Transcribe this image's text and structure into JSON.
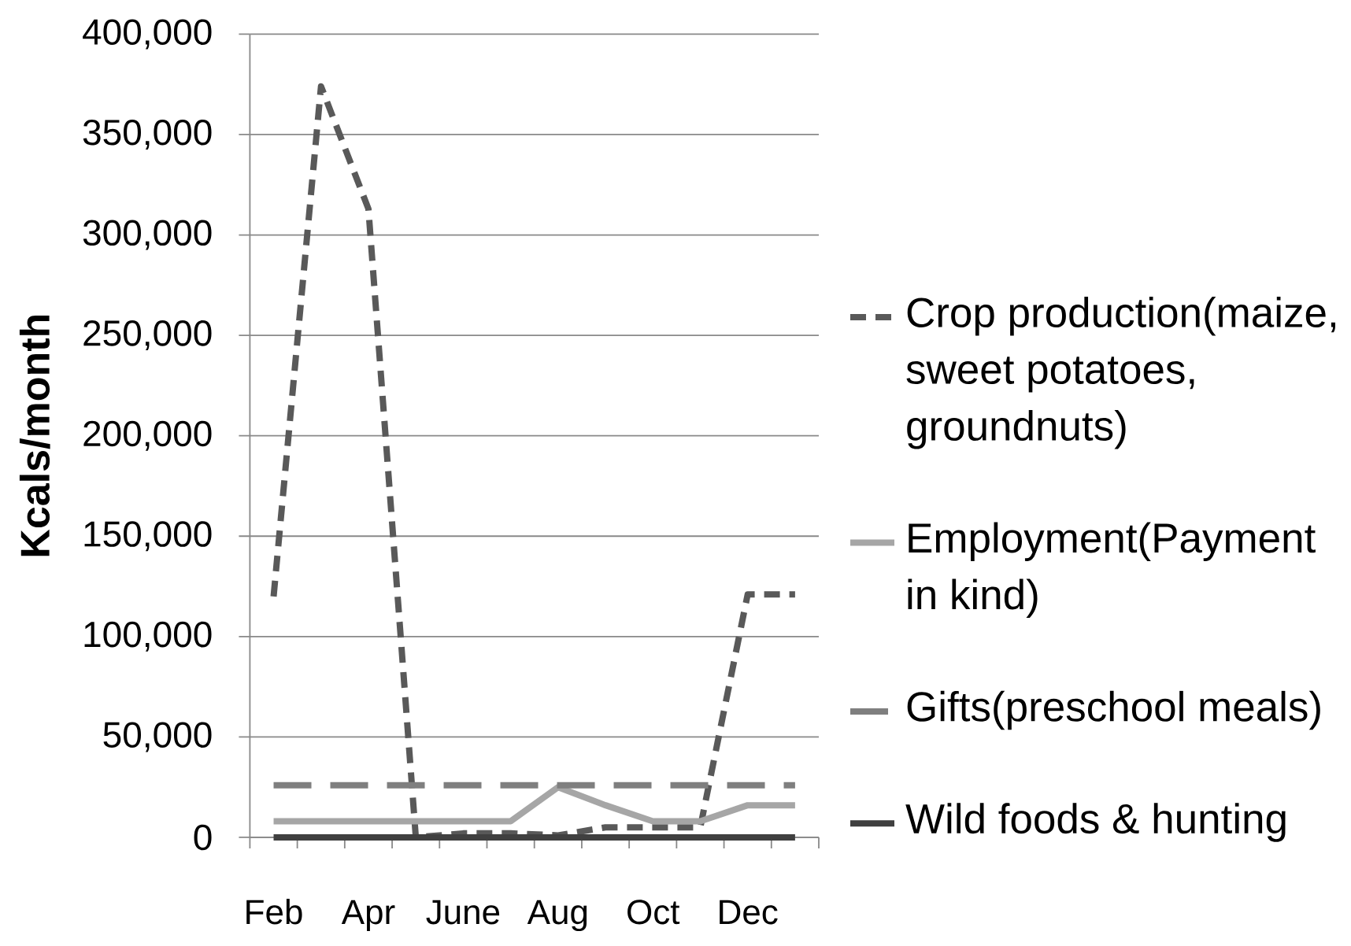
{
  "chart_data": {
    "type": "line",
    "categories": [
      "Feb",
      null,
      "Apr",
      null,
      "June",
      null,
      "Aug",
      null,
      "Oct",
      null,
      "Dec",
      null
    ],
    "ylabel": "Kcals/month",
    "ylim": [
      0,
      400000
    ],
    "yticks": [
      0,
      {
        "value": 50000,
        "label": "50,000"
      },
      {
        "value": 100000,
        "label": "100,000"
      },
      {
        "value": 150000,
        "label": "150,000"
      },
      {
        "value": 200000,
        "label": "200,000"
      },
      {
        "value": 250000,
        "label": "250,000"
      },
      {
        "value": 300000,
        "label": "300,000"
      },
      {
        "value": 350000,
        "label": "350,000"
      },
      {
        "value": 400000,
        "label": "400,000"
      }
    ],
    "grid": "y",
    "legend": "right",
    "series": [
      {
        "name": "Crop production(maize, sweet potatoes, groundnuts)",
        "color": "#595959",
        "line_style": "dashed",
        "values": [
          120000,
          374000,
          313000,
          0,
          2000,
          2000,
          1000,
          5000,
          5000,
          5000,
          121000,
          121000
        ]
      },
      {
        "name": "Employment(Payment in kind)",
        "color": "#a6a6a6",
        "line_style": "solid",
        "values": [
          8000,
          8000,
          8000,
          8000,
          8000,
          8000,
          25000,
          16000,
          8000,
          8000,
          16000,
          16000
        ]
      },
      {
        "name": "Gifts(preschool meals)",
        "color": "#7f7f7f",
        "line_style": "dashed",
        "values": [
          26000,
          26000,
          26000,
          26000,
          26000,
          26000,
          26000,
          26000,
          26000,
          26000,
          26000,
          26000
        ]
      },
      {
        "name": "Wild foods & hunting",
        "color": "#404040",
        "line_style": "solid",
        "values": [
          0,
          0,
          0,
          0,
          0,
          0,
          0,
          0,
          0,
          0,
          0,
          0
        ]
      }
    ]
  }
}
